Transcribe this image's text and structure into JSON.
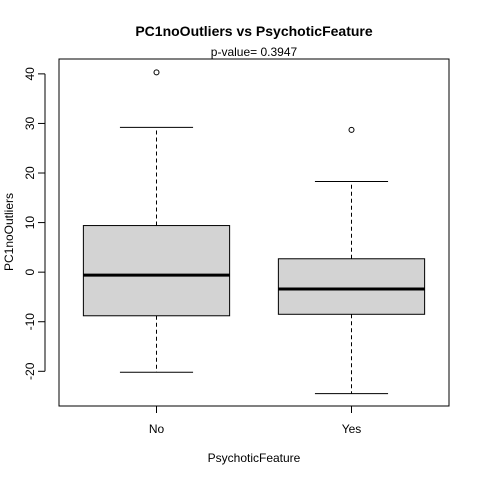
{
  "chart_data": {
    "type": "boxplot",
    "title": "PC1noOutliers  vs  PsychoticFeature",
    "subtitle": "p-value= 0.3947",
    "xlabel": "PsychoticFeature",
    "ylabel": "PC1noOutliers",
    "categories": [
      "No",
      "Yes"
    ],
    "ylim": [
      -27,
      43
    ],
    "yticks": [
      -20,
      -10,
      0,
      10,
      20,
      30,
      40
    ],
    "ytick_labels": [
      "-20",
      "-10",
      "0",
      "10",
      "20",
      "30",
      "40"
    ],
    "boxes": [
      {
        "category": "No",
        "whisker_low": -20.2,
        "q1": -8.8,
        "median": -0.6,
        "q3": 9.4,
        "whisker_high": 29.2,
        "outliers": [
          40.3
        ]
      },
      {
        "category": "Yes",
        "whisker_low": -24.5,
        "q1": -8.5,
        "median": -3.4,
        "q3": 2.7,
        "whisker_high": 18.3,
        "outliers": [
          28.7
        ]
      }
    ],
    "box_fill": "#d3d3d3",
    "stroke_color": "#000000",
    "grid": false,
    "legend": "none"
  }
}
